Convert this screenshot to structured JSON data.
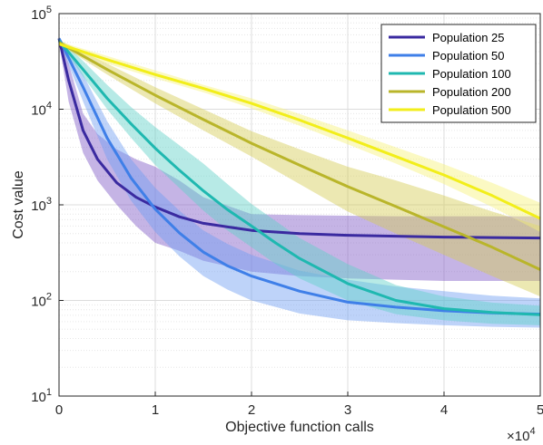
{
  "chart_data": {
    "type": "line",
    "xlabel": "Objective function calls",
    "ylabel": "Cost value",
    "x_multiplier_label": "×10",
    "x_multiplier_exponent": "4",
    "xlim": [
      0,
      50000
    ],
    "ylim": [
      10,
      100000
    ],
    "y_scale": "log",
    "grid": true,
    "legend_position": "top-right",
    "x_ticks": [
      0,
      10000,
      20000,
      30000,
      40000,
      50000
    ],
    "x_tick_labels": [
      "0",
      "1",
      "2",
      "3",
      "4",
      "5"
    ],
    "y_ticks": [
      10,
      100,
      1000,
      10000,
      100000
    ],
    "y_tick_labels": [
      {
        "base": "10",
        "exp": "1"
      },
      {
        "base": "10",
        "exp": "2"
      },
      {
        "base": "10",
        "exp": "3"
      },
      {
        "base": "10",
        "exp": "4"
      },
      {
        "base": "10",
        "exp": "5"
      }
    ],
    "series": [
      {
        "name": "Population 25",
        "color": "#3a2aa0",
        "band_color": "#7e58c6",
        "x": [
          0,
          1000,
          2500,
          4000,
          6000,
          8000,
          10000,
          12500,
          15000,
          20000,
          25000,
          30000,
          35000,
          40000,
          45000,
          50000
        ],
        "y": [
          55000,
          20000,
          6000,
          3000,
          1700,
          1200,
          950,
          750,
          640,
          540,
          500,
          480,
          470,
          460,
          455,
          450
        ],
        "lower": [
          50000,
          12000,
          3500,
          1800,
          1000,
          600,
          400,
          330,
          260,
          200,
          180,
          170,
          165,
          160,
          160,
          160
        ],
        "upper": [
          58000,
          30000,
          9000,
          5500,
          3800,
          3000,
          2500,
          1800,
          1200,
          800,
          780,
          770,
          760,
          760,
          760,
          760
        ]
      },
      {
        "name": "Population 50",
        "color": "#3f7fe8",
        "band_color": "#6f9df2",
        "x": [
          0,
          2500,
          5000,
          7500,
          10000,
          12500,
          15000,
          17500,
          20000,
          25000,
          30000,
          35000,
          40000,
          45000,
          50000
        ],
        "y": [
          55000,
          17000,
          5000,
          1900,
          900,
          510,
          320,
          230,
          180,
          125,
          96,
          85,
          78,
          74,
          72
        ],
        "lower": [
          52000,
          12000,
          3000,
          1100,
          520,
          290,
          180,
          130,
          100,
          73,
          62,
          58,
          55,
          53,
          52
        ],
        "upper": [
          58000,
          23000,
          7500,
          3000,
          1500,
          870,
          540,
          390,
          300,
          205,
          165,
          140,
          125,
          112,
          105
        ]
      },
      {
        "name": "Population 100",
        "color": "#1fb8b0",
        "band_color": "#5fd1c8",
        "x": [
          0,
          2500,
          5000,
          7500,
          10000,
          12500,
          15000,
          17500,
          20000,
          22500,
          25000,
          30000,
          35000,
          40000,
          45000,
          50000
        ],
        "y": [
          52000,
          26000,
          13000,
          7000,
          3900,
          2300,
          1400,
          890,
          600,
          400,
          275,
          150,
          100,
          82,
          75,
          71
        ],
        "lower": [
          50000,
          22000,
          10000,
          5000,
          2600,
          1500,
          870,
          540,
          360,
          240,
          170,
          100,
          72,
          62,
          57,
          55
        ],
        "upper": [
          55000,
          32000,
          18000,
          10500,
          6500,
          4200,
          2700,
          1650,
          1020,
          680,
          450,
          240,
          145,
          110,
          95,
          88
        ]
      },
      {
        "name": "Population 200",
        "color": "#b9b52a",
        "band_color": "#d4cc55",
        "x": [
          0,
          5000,
          10000,
          15000,
          20000,
          25000,
          30000,
          35000,
          40000,
          45000,
          50000
        ],
        "y": [
          50000,
          26000,
          14000,
          7800,
          4400,
          2600,
          1550,
          960,
          590,
          360,
          210
        ],
        "lower": [
          48000,
          23000,
          11500,
          6000,
          3200,
          1650,
          850,
          500,
          300,
          180,
          110
        ],
        "upper": [
          53000,
          30000,
          17000,
          10000,
          5900,
          3800,
          2500,
          1800,
          1250,
          850,
          600
        ]
      },
      {
        "name": "Population 500",
        "color": "#f2ee1a",
        "band_color": "#f7f27a",
        "x": [
          0,
          5000,
          10000,
          15000,
          20000,
          25000,
          30000,
          35000,
          40000,
          45000,
          50000
        ],
        "y": [
          48000,
          33000,
          23000,
          16500,
          11500,
          7700,
          5000,
          3200,
          2050,
          1250,
          720
        ],
        "lower": [
          46000,
          30000,
          21000,
          15000,
          10200,
          6700,
          4300,
          2700,
          1650,
          950,
          520
        ],
        "upper": [
          51000,
          36000,
          25500,
          18000,
          13000,
          8900,
          6000,
          4000,
          2650,
          1700,
          1050
        ]
      }
    ]
  }
}
